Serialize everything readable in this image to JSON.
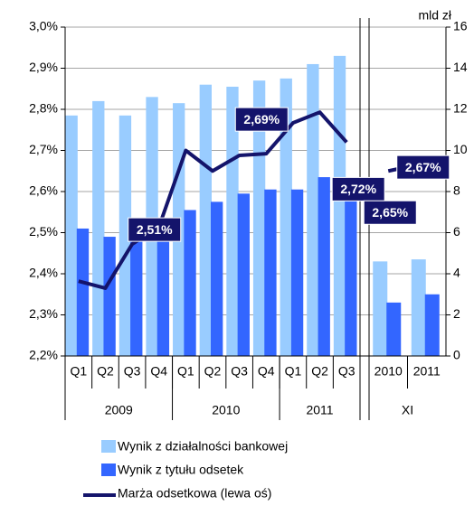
{
  "chart_data": {
    "type": "bar",
    "y2_label": "mld zł",
    "categories": [
      "Q1",
      "Q2",
      "Q3",
      "Q4",
      "Q1",
      "Q2",
      "Q3",
      "Q4",
      "Q1",
      "Q2",
      "Q3",
      "2010",
      "2011"
    ],
    "groups": [
      {
        "label": "2009",
        "count": 4
      },
      {
        "label": "2010",
        "count": 4
      },
      {
        "label": "2011",
        "count": 3
      },
      {
        "label": "XI",
        "count": 2
      }
    ],
    "series": [
      {
        "name": "Wynik z działalności bankowej",
        "color": "#99ccff",
        "axis": "y2",
        "values": [
          11.7,
          12.4,
          11.7,
          12.6,
          12.3,
          13.2,
          13.1,
          13.4,
          13.5,
          14.2,
          14.6,
          4.6,
          4.7
        ]
      },
      {
        "name": "Wynik z tytułu odsetek",
        "color": "#3366ff",
        "axis": "y2",
        "values": [
          6.2,
          5.8,
          5.8,
          6.3,
          7.1,
          7.5,
          7.9,
          8.1,
          8.1,
          8.7,
          8.6,
          2.6,
          3.0
        ]
      },
      {
        "name": "Marża odsetkowa (lewa oś)",
        "color": "#14146b",
        "type": "line",
        "values": [
          2.382,
          2.365,
          2.472,
          2.514,
          2.7,
          2.65,
          2.688,
          2.692,
          2.767,
          2.793,
          2.72,
          2.65,
          2.67
        ],
        "value_labels": [
          null,
          null,
          null,
          "2,51%",
          null,
          null,
          null,
          "2,69%",
          null,
          null,
          "2,72%",
          "2,65%",
          "2,67%"
        ]
      }
    ],
    "ylim": [
      2.2,
      3.0
    ],
    "yticks": [
      {
        "value": 2.2,
        "label": "2,2%"
      },
      {
        "value": 2.3,
        "label": "2,3%"
      },
      {
        "value": 2.4,
        "label": "2,4%"
      },
      {
        "value": 2.5,
        "label": "2,5%"
      },
      {
        "value": 2.6,
        "label": "2,6%"
      },
      {
        "value": 2.7,
        "label": "2,7%"
      },
      {
        "value": 2.8,
        "label": "2,8%"
      },
      {
        "value": 2.9,
        "label": "2,9%"
      },
      {
        "value": 3.0,
        "label": "3,0%"
      }
    ],
    "y2lim": [
      0,
      16
    ],
    "y2ticks": [
      0,
      2,
      4,
      6,
      8,
      10,
      12,
      14,
      16
    ],
    "grid": true
  }
}
